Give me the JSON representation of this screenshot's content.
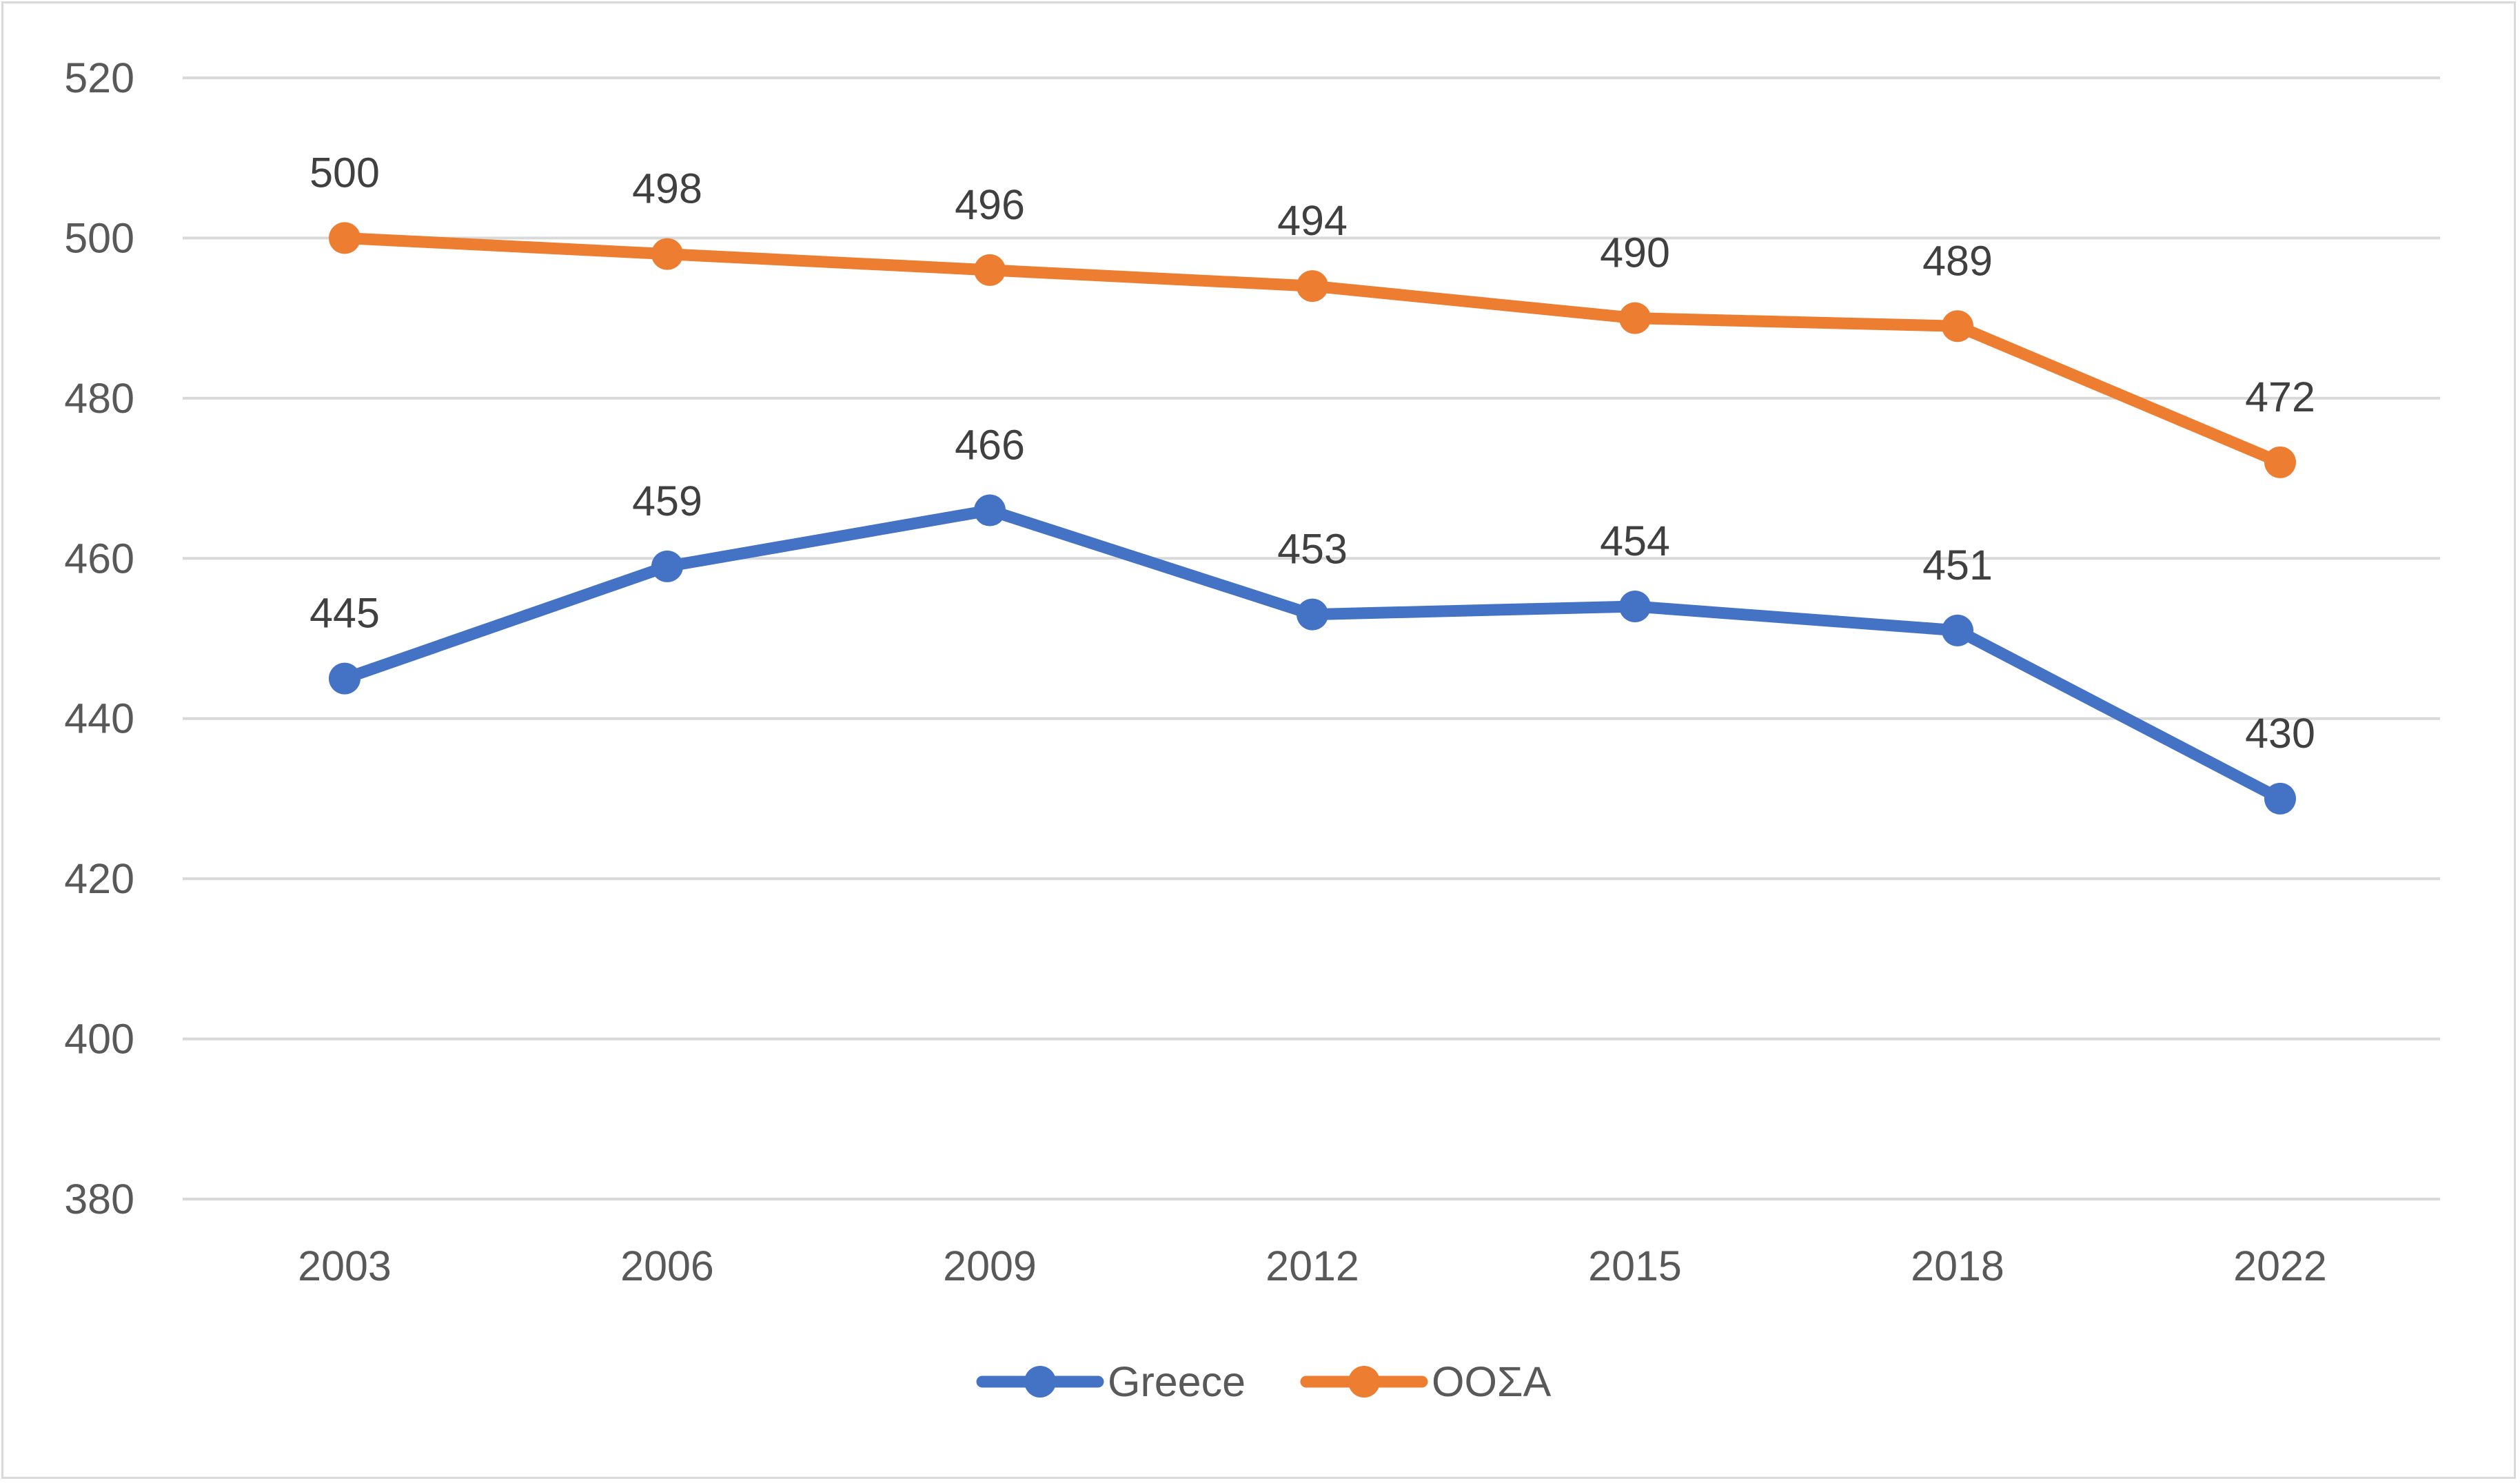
{
  "chart_data": {
    "type": "line",
    "title": "",
    "xlabel": "",
    "ylabel": "",
    "categories": [
      "2003",
      "2006",
      "2009",
      "2012",
      "2015",
      "2018",
      "2022"
    ],
    "ylim": [
      380,
      520
    ],
    "yticks": [
      380,
      400,
      420,
      440,
      460,
      480,
      500,
      520
    ],
    "grid": true,
    "legend": "bottom-center",
    "series": [
      {
        "name": "Greece",
        "color": "#4472c4",
        "values": [
          445,
          459,
          466,
          453,
          454,
          451,
          430
        ]
      },
      {
        "name": "ΟΟΣΑ",
        "color": "#ed7d31",
        "values": [
          500,
          498,
          496,
          494,
          490,
          489,
          472
        ]
      }
    ]
  }
}
